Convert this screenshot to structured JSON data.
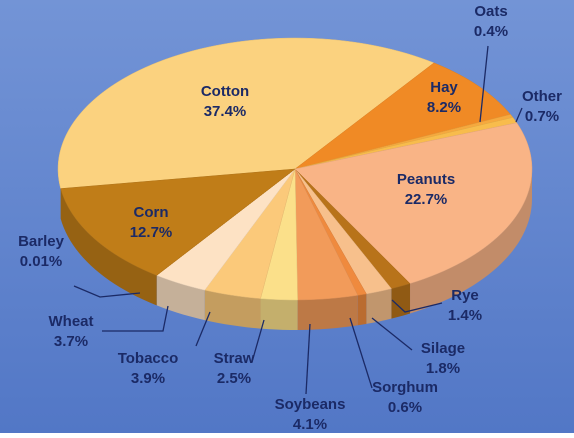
{
  "chart_data": {
    "type": "pie",
    "categories": [
      "Cotton",
      "Hay",
      "Oats",
      "Other",
      "Peanuts",
      "Rye",
      "Silage",
      "Sorghum",
      "Soybeans",
      "Straw",
      "Tobacco",
      "Wheat",
      "Barley",
      "Corn"
    ],
    "values": [
      37.4,
      8.2,
      0.4,
      0.7,
      22.7,
      1.4,
      1.8,
      0.6,
      4.1,
      2.5,
      3.9,
      3.7,
      0.01,
      12.7
    ],
    "value_labels": [
      "37.4%",
      "8.2%",
      "0.4%",
      "0.7%",
      "22.7%",
      "1.4%",
      "1.8%",
      "0.6%",
      "4.1%",
      "2.5%",
      "3.9%",
      "3.7%",
      "0.01%",
      "12.7%"
    ],
    "colors": [
      "#fbd27f",
      "#f08a25",
      "#f6a93e",
      "#f8bc4c",
      "#f9b486",
      "#b8731a",
      "#f7c08c",
      "#ef8a3e",
      "#f29b5a",
      "#fbe08a",
      "#fbc97a",
      "#fde2c4",
      "#c47e1a",
      "#c07d18"
    ]
  }
}
